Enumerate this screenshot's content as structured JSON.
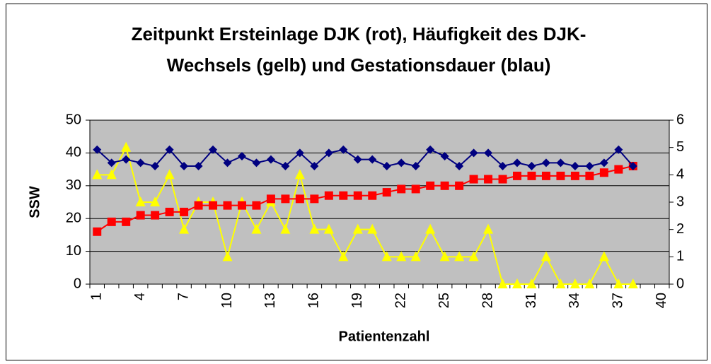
{
  "chart_data": {
    "type": "line",
    "title": "Zeitpunkt Ersteinlage DJK (rot), Häufigkeit des DJK-Wechsels (gelb) und Gestationsdauer (blau)",
    "y_label": "SSW",
    "x_label": "Patientenzahl",
    "categories": [
      "1",
      null,
      null,
      "4",
      null,
      null,
      "7",
      null,
      null,
      "10",
      null,
      null,
      "13",
      null,
      null,
      "16",
      null,
      null,
      "19",
      null,
      null,
      "22",
      null,
      null,
      "25",
      null,
      null,
      "28",
      null,
      null,
      "31",
      null,
      null,
      "34",
      null,
      null,
      "37",
      null,
      null,
      "40"
    ],
    "ylim": [
      0,
      50
    ],
    "yticks": [
      0,
      10,
      20,
      30,
      40,
      50
    ],
    "y2lim": [
      0,
      6
    ],
    "y2ticks": [
      0,
      1,
      2,
      3,
      4,
      5,
      6
    ],
    "grid": true,
    "plot_background": "#c0c0c0",
    "series": [
      {
        "color": "#000080",
        "marker": "diamond",
        "values": [
          41,
          37,
          38,
          37,
          36,
          41,
          36,
          36,
          41,
          37,
          39,
          37,
          38,
          36,
          40,
          36,
          40,
          41,
          38,
          38,
          36,
          37,
          36,
          41,
          39,
          36,
          40,
          40,
          36,
          37,
          36,
          37,
          37,
          36,
          36,
          37,
          41,
          36,
          null,
          null
        ]
      },
      {
        "color": "#ff0000",
        "marker": "square",
        "values": [
          16,
          19,
          19,
          21,
          21,
          22,
          22,
          24,
          24,
          24,
          24,
          24,
          26,
          26,
          26,
          26,
          27,
          27,
          27,
          27,
          28,
          29,
          29,
          30,
          30,
          30,
          32,
          32,
          32,
          33,
          33,
          33,
          33,
          33,
          33,
          34,
          35,
          36,
          null,
          null
        ]
      },
      {
        "color": "#ffff00",
        "marker": "triangle",
        "axis": "y2",
        "values": [
          4,
          4,
          5,
          3,
          3,
          4,
          2,
          3,
          3,
          1,
          3,
          2,
          3,
          2,
          4,
          2,
          2,
          1,
          2,
          2,
          1,
          1,
          1,
          2,
          1,
          1,
          1,
          2,
          0,
          0,
          0,
          1,
          0,
          0,
          0,
          1,
          0,
          0,
          null,
          null
        ]
      }
    ]
  }
}
